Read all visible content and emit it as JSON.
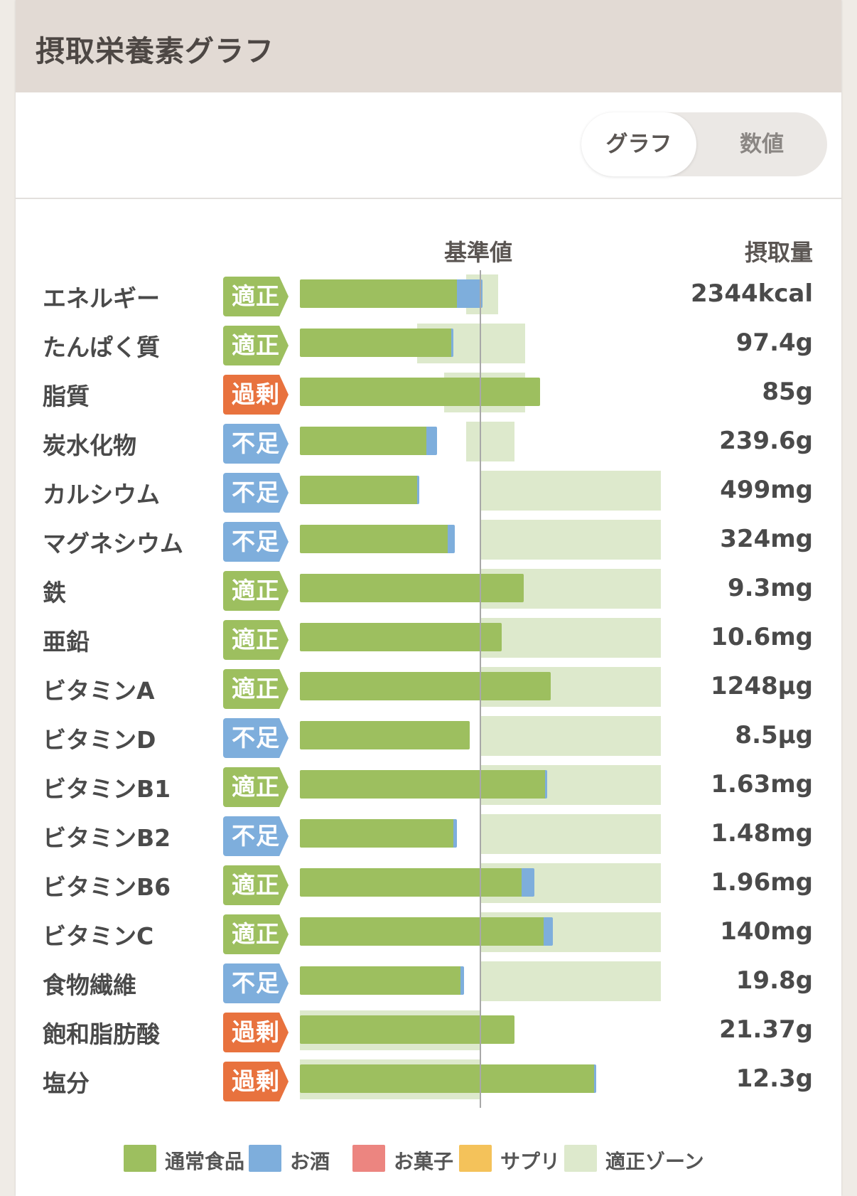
{
  "header": {
    "title": "摂取栄養素グラフ"
  },
  "toggle": {
    "graph": "グラフ",
    "numbers": "数値"
  },
  "columns": {
    "reference": "基準値",
    "intake": "摂取量"
  },
  "colors": {
    "normal_food": "#9dbf5f",
    "alcohol": "#7eaedc",
    "snacks": "#ec8580",
    "supplement": "#f4c25a",
    "proper_zone": "#dde9cc",
    "status_proper": "#9dbf5f",
    "status_excess": "#e8723e",
    "status_deficient": "#7eaedc"
  },
  "legend": [
    {
      "label": "通常食品",
      "color": "#9dbf5f"
    },
    {
      "label": "お酒",
      "color": "#7eaedc"
    },
    {
      "label": "お菓子",
      "color": "#ec8580"
    },
    {
      "label": "サプリ",
      "color": "#f4c25a"
    },
    {
      "label": "適正ゾーン",
      "color": "#dde9cc"
    }
  ],
  "chart_data": {
    "type": "bar",
    "note_units": "bar values are percent of reference value (基準値 = 100)",
    "categories": [
      "エネルギー",
      "たんぱく質",
      "脂質",
      "炭水化物",
      "カルシウム",
      "マグネシウム",
      "鉄",
      "亜鉛",
      "ビタミンA",
      "ビタミンD",
      "ビタミンB1",
      "ビタミンB2",
      "ビタミンB6",
      "ビタミンC",
      "食物繊維",
      "飽和脂肪酸",
      "塩分"
    ],
    "status": [
      "適正",
      "適正",
      "過剰",
      "不足",
      "不足",
      "不足",
      "適正",
      "適正",
      "適正",
      "不足",
      "適正",
      "不足",
      "適正",
      "適正",
      "不足",
      "過剰",
      "過剰"
    ],
    "status_colors": [
      "#9dbf5f",
      "#9dbf5f",
      "#e8723e",
      "#7eaedc",
      "#7eaedc",
      "#7eaedc",
      "#9dbf5f",
      "#9dbf5f",
      "#9dbf5f",
      "#7eaedc",
      "#9dbf5f",
      "#7eaedc",
      "#9dbf5f",
      "#9dbf5f",
      "#7eaedc",
      "#e8723e",
      "#e8723e"
    ],
    "intake": [
      "2344kcal",
      "97.4g",
      "85g",
      "239.6g",
      "499mg",
      "324mg",
      "9.3mg",
      "10.6mg",
      "1248µg",
      "8.5µg",
      "1.63mg",
      "1.48mg",
      "1.96mg",
      "140mg",
      "19.8g",
      "21.37g",
      "12.3g"
    ],
    "series": [
      {
        "name": "通常食品",
        "values": [
          87,
          84,
          133,
          70,
          65,
          82,
          124,
          112,
          139,
          94,
          136,
          85,
          123,
          135,
          89,
          119,
          163
        ]
      },
      {
        "name": "お酒",
        "values": [
          14,
          1,
          0,
          6,
          1,
          4,
          0,
          0,
          0,
          0,
          1,
          2,
          7,
          5,
          2,
          0,
          1
        ]
      },
      {
        "name": "お菓子",
        "values": [
          0,
          0,
          0,
          0,
          0,
          0,
          0,
          0,
          0,
          0,
          0,
          0,
          0,
          0,
          0,
          0,
          0
        ]
      },
      {
        "name": "サプリ",
        "values": [
          0,
          0,
          0,
          0,
          0,
          0,
          0,
          0,
          0,
          0,
          0,
          0,
          0,
          0,
          0,
          0,
          0
        ]
      }
    ],
    "proper_zone": [
      [
        92,
        110
      ],
      [
        65,
        125
      ],
      [
        80,
        125
      ],
      [
        92,
        119
      ],
      [
        100,
        200
      ],
      [
        100,
        200
      ],
      [
        100,
        200
      ],
      [
        100,
        200
      ],
      [
        100,
        200
      ],
      [
        100,
        200
      ],
      [
        100,
        200
      ],
      [
        100,
        200
      ],
      [
        100,
        200
      ],
      [
        100,
        200
      ],
      [
        100,
        200
      ],
      [
        0,
        100
      ],
      [
        0,
        100
      ]
    ],
    "reference": 100,
    "xlim": [
      0,
      200
    ]
  }
}
